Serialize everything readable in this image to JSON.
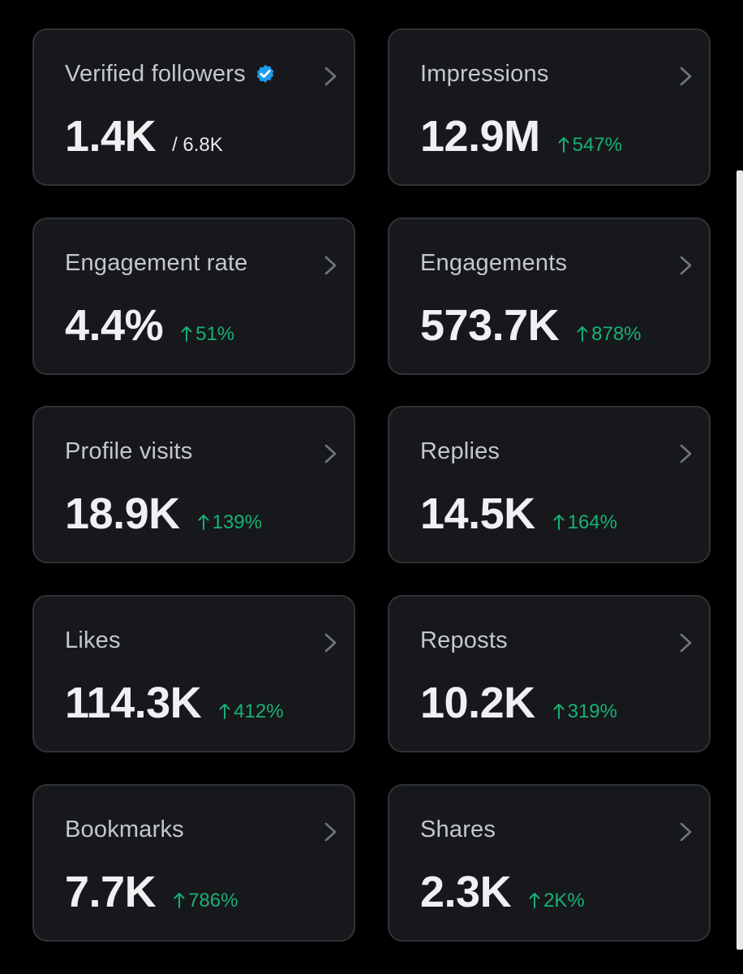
{
  "colors": {
    "background": "#000000",
    "card": "#16181c",
    "card_border": "#2f3336",
    "title_text": "#c4c7cb",
    "value_text": "#eef0f2",
    "positive_change": "#19b074",
    "verified_badge": "#1d9bf0"
  },
  "cards": {
    "verified_followers": {
      "title": "Verified followers",
      "value": "1.4K",
      "subvalue": "/ 6.8K",
      "icon": "verified-badge-icon"
    },
    "impressions": {
      "title": "Impressions",
      "value": "12.9M",
      "change": "547%",
      "direction": "up"
    },
    "engagement_rate": {
      "title": "Engagement rate",
      "value": "4.4%",
      "change": "51%",
      "direction": "up"
    },
    "engagements": {
      "title": "Engagements",
      "value": "573.7K",
      "change": "878%",
      "direction": "up"
    },
    "profile_visits": {
      "title": "Profile visits",
      "value": "18.9K",
      "change": "139%",
      "direction": "up"
    },
    "replies": {
      "title": "Replies",
      "value": "14.5K",
      "change": "164%",
      "direction": "up"
    },
    "likes": {
      "title": "Likes",
      "value": "114.3K",
      "change": "412%",
      "direction": "up"
    },
    "reposts": {
      "title": "Reposts",
      "value": "10.2K",
      "change": "319%",
      "direction": "up"
    },
    "bookmarks": {
      "title": "Bookmarks",
      "value": "7.7K",
      "change": "786%",
      "direction": "up"
    },
    "shares": {
      "title": "Shares",
      "value": "2.3K",
      "change": "2K%",
      "direction": "up"
    }
  }
}
